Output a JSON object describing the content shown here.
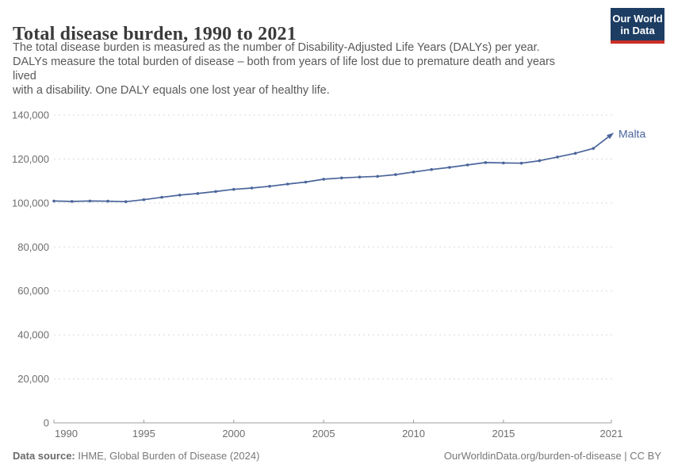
{
  "header": {
    "title": "Total disease burden, 1990 to 2021",
    "subtitle": "The total disease burden is measured as the number of Disability-Adjusted Life Years (DALYs) per year.\nDALYs measure the total burden of disease – both from years of life lost due to premature death and years\nlived\nwith a disability. One DALY equals one lost year of healthy life.",
    "logo": {
      "line1": "Our World",
      "line2": "in Data"
    }
  },
  "chart_data": {
    "type": "line",
    "title": "Total disease burden, 1990 to 2021",
    "entity": "Malta",
    "unit": "Disability-Adjusted Life Years (DALYs) per year",
    "x": [
      1990,
      1991,
      1992,
      1993,
      1994,
      1995,
      1996,
      1997,
      1998,
      1999,
      2000,
      2001,
      2002,
      2003,
      2004,
      2005,
      2006,
      2007,
      2008,
      2009,
      2010,
      2011,
      2012,
      2013,
      2014,
      2015,
      2016,
      2017,
      2018,
      2019,
      2020,
      2021
    ],
    "series": [
      {
        "name": "Malta",
        "values": [
          100900,
          100700,
          100900,
          100800,
          100600,
          101500,
          102600,
          103600,
          104300,
          105200,
          106200,
          106800,
          107600,
          108600,
          109500,
          110800,
          111400,
          111800,
          112100,
          112900,
          114100,
          115200,
          116200,
          117300,
          118400,
          118200,
          118100,
          119200,
          120900,
          122600,
          124800,
          131100
        ]
      }
    ],
    "ylim": [
      0,
      140000
    ],
    "yticks": [
      0,
      20000,
      40000,
      60000,
      80000,
      100000,
      120000,
      140000
    ],
    "ytick_labels": [
      "0",
      "20,000",
      "40,000",
      "60,000",
      "80,000",
      "100,000",
      "120,000",
      "140,000"
    ],
    "xticks": [
      1990,
      1995,
      2000,
      2005,
      2010,
      2015,
      2021
    ],
    "grid": "horizontal dashed",
    "legend_position": "end-of-line label"
  },
  "footer": {
    "source_label": "Data source:",
    "source_text": " IHME, Global Burden of Disease (2024)",
    "link_text": "OurWorldinData.org/burden-of-disease | CC BY"
  },
  "colors": {
    "line": "#4a659b",
    "grid": "#dadada",
    "axis": "#9c9c9c",
    "tick_label": "#6e6e6e",
    "title": "#3a3a3a",
    "subtitle": "#595959",
    "logo_bg": "#1d3d63",
    "logo_red": "#cc2e27"
  }
}
